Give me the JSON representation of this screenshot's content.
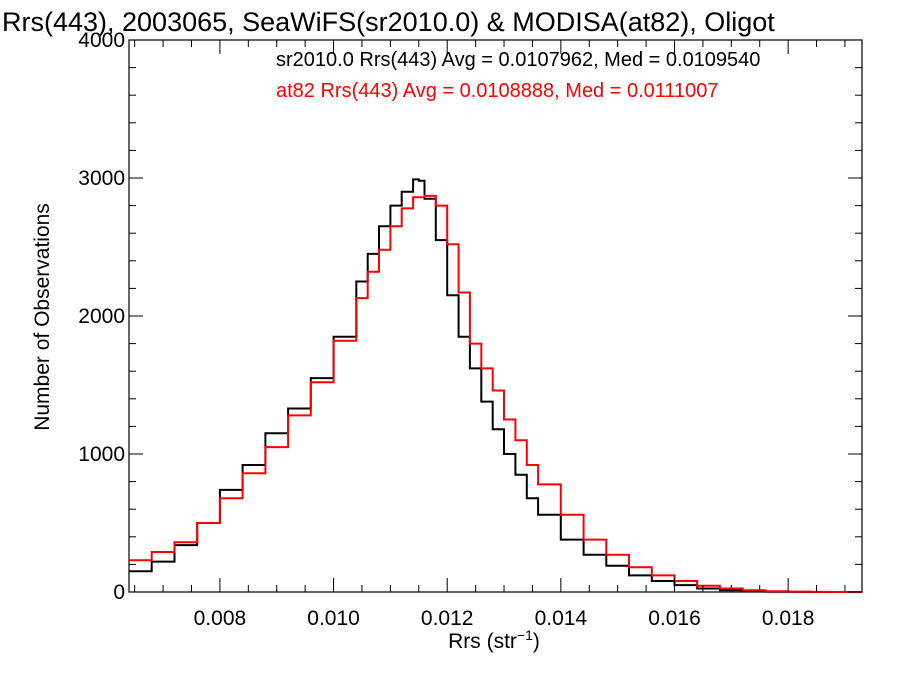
{
  "chart_data": {
    "type": "line",
    "title": "Rrs(443), 2003065, SeaWiFS(sr2010.0) & MODISA(at82), Oligot",
    "xlabel": "Rrs (str",
    "xlabel_sup": "−1",
    "xlabel_close": ")",
    "ylabel": "Number of Observations",
    "xlim": [
      0.0064,
      0.0193
    ],
    "ylim": [
      0,
      4000
    ],
    "x_ticks": [
      "0.008",
      "0.010",
      "0.012",
      "0.014",
      "0.016",
      "0.018"
    ],
    "y_ticks": [
      "0",
      "1000",
      "2000",
      "3000",
      "4000"
    ],
    "grid": false,
    "legend": [
      {
        "text": "sr2010.0 Rrs(443) Avg = 0.0107962, Med = 0.0109540",
        "color": "#000000"
      },
      {
        "text": "at82 Rrs(443) Avg = 0.0108888, Med = 0.0111007",
        "color": "#ff0000"
      }
    ],
    "series": [
      {
        "color": "#000000",
        "x": [
          0.0064,
          0.0068,
          0.0072,
          0.0076,
          0.008,
          0.0084,
          0.0088,
          0.0092,
          0.0096,
          0.01,
          0.0104,
          0.0106,
          0.0108,
          0.011,
          0.0112,
          0.0114,
          0.0115,
          0.0116,
          0.0118,
          0.012,
          0.0122,
          0.0124,
          0.0126,
          0.0128,
          0.013,
          0.0132,
          0.0134,
          0.0136,
          0.014,
          0.0144,
          0.0148,
          0.0152,
          0.0156,
          0.016,
          0.0164,
          0.0168,
          0.0172,
          0.0176,
          0.018,
          0.0184,
          0.0188,
          0.0193
        ],
        "y": [
          150,
          220,
          340,
          500,
          740,
          920,
          1150,
          1330,
          1550,
          1850,
          2250,
          2450,
          2650,
          2800,
          2900,
          2990,
          2980,
          2850,
          2550,
          2150,
          1850,
          1620,
          1380,
          1180,
          1000,
          850,
          680,
          560,
          380,
          270,
          190,
          120,
          80,
          50,
          25,
          12,
          5,
          2,
          1,
          0,
          0,
          0
        ]
      },
      {
        "color": "#ff0000",
        "x": [
          0.0064,
          0.0068,
          0.0072,
          0.0076,
          0.008,
          0.0084,
          0.0088,
          0.0092,
          0.0096,
          0.01,
          0.0104,
          0.0106,
          0.0108,
          0.011,
          0.0112,
          0.0114,
          0.0116,
          0.0118,
          0.012,
          0.0122,
          0.0124,
          0.0126,
          0.0128,
          0.013,
          0.0132,
          0.0134,
          0.0136,
          0.014,
          0.0144,
          0.0148,
          0.0152,
          0.0156,
          0.016,
          0.0164,
          0.0168,
          0.0172,
          0.0176,
          0.018,
          0.0184,
          0.0188,
          0.0193
        ],
        "y": [
          230,
          290,
          360,
          500,
          680,
          860,
          1050,
          1280,
          1520,
          1820,
          2130,
          2320,
          2480,
          2650,
          2780,
          2860,
          2870,
          2800,
          2520,
          2170,
          1800,
          1620,
          1460,
          1250,
          1100,
          920,
          780,
          560,
          380,
          270,
          180,
          120,
          80,
          45,
          25,
          12,
          6,
          3,
          1,
          0,
          0
        ]
      }
    ]
  }
}
